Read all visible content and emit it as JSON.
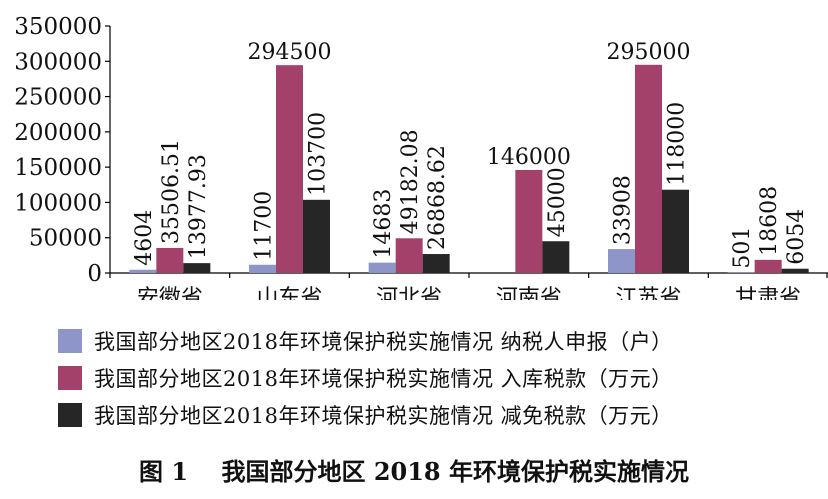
{
  "chart_data": {
    "type": "bar",
    "categories": [
      "安徽省",
      "山东省",
      "河北省",
      "河南省",
      "江苏省",
      "甘肃省"
    ],
    "series": [
      {
        "name": "我国部分地区2018年环境保护税实施情况 纳税人申报（户）",
        "color": "#8d95c9",
        "values": [
          4604,
          11700,
          14683,
          null,
          33908,
          501
        ],
        "labels": [
          "4604",
          "11700",
          "14683",
          "",
          "33908",
          "501"
        ]
      },
      {
        "name": "我国部分地区2018年环境保护税实施情况 入库税款（万元）",
        "color": "#a3416a",
        "values": [
          35506.51,
          294500,
          49182.08,
          146000,
          295000,
          18608
        ],
        "labels": [
          "35506.51",
          "294500",
          "49182.08",
          "146000",
          "295000",
          "18608"
        ]
      },
      {
        "name": "我国部分地区2018年环境保护税实施情况 减免税款（万元）",
        "color": "#262626",
        "values": [
          13977.93,
          103700,
          26868.62,
          45000,
          118000,
          6054
        ],
        "labels": [
          "13977.93",
          "103700",
          "26868.62",
          "45000",
          "118000",
          "6054"
        ]
      }
    ],
    "yticks": [
      "0",
      "50000",
      "100000",
      "150000",
      "200000",
      "250000",
      "300000",
      "350000"
    ],
    "ylim": [
      0,
      350000
    ],
    "grid": false,
    "legend_position": "bottom"
  },
  "caption": "图 1    我国部分地区 2018 年环境保护税实施情况"
}
